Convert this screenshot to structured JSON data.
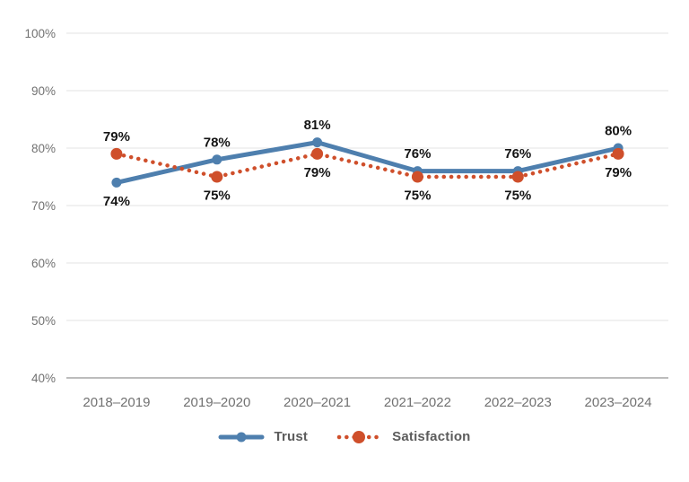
{
  "chart_data": {
    "type": "line",
    "title": "",
    "xlabel": "",
    "ylabel": "",
    "categories": [
      "2018–2019",
      "2019–2020",
      "2020–2021",
      "2021–2022",
      "2022–2023",
      "2023–2024"
    ],
    "series": [
      {
        "name": "Trust",
        "values": [
          74,
          78,
          81,
          76,
          76,
          80
        ],
        "data_labels": [
          "74%",
          "78%",
          "81%",
          "76%",
          "76%",
          "80%"
        ],
        "label_positions": [
          "below",
          "above",
          "above",
          "above",
          "above",
          "above"
        ],
        "color": "#4E7FAE",
        "line_style": "solid"
      },
      {
        "name": "Satisfaction",
        "values": [
          79,
          75,
          79,
          75,
          75,
          79
        ],
        "data_labels": [
          "79%",
          "75%",
          "79%",
          "75%",
          "75%",
          "79%"
        ],
        "label_positions": [
          "above",
          "below",
          "below",
          "below",
          "below",
          "below"
        ],
        "color": "#CF4F2B",
        "line_style": "dotted"
      }
    ],
    "ylim": [
      40,
      100
    ],
    "y_ticks": [
      100,
      90,
      80,
      70,
      60,
      50,
      40
    ],
    "y_tick_labels": [
      "100%",
      "90%",
      "80%",
      "70%",
      "60%",
      "50%",
      "40%"
    ],
    "grid": true,
    "legend_position": "bottom",
    "styles": {
      "grid_color": "#E3E3E3",
      "axis_line_color": "#A6A6A6",
      "tick_label_color": "#717171",
      "data_label_color": "#141414",
      "legend_text_color": "#5C5C5C",
      "background": "#FFFFFF"
    }
  }
}
